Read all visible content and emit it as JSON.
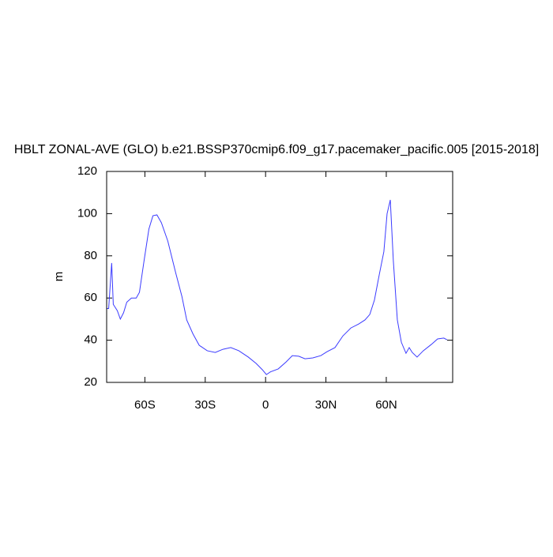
{
  "chart_data": {
    "type": "line",
    "title": "HBLT ZONAL-AVE (GLO) b.e21.BSSP370cmip6.f09_g17.pacemaker_pacific.005 [2015-2018]",
    "y_label": "m",
    "xlim": [
      -79,
      93
    ],
    "xticks": [
      {
        "value": -60,
        "label": "60S"
      },
      {
        "value": -30,
        "label": "30S"
      },
      0,
      {
        "value": 30,
        "label": "30N"
      },
      {
        "value": 60,
        "label": "60N"
      }
    ],
    "ylim": [
      20,
      120
    ],
    "yticks": [
      20,
      40,
      60,
      80,
      100,
      120
    ],
    "grid": false,
    "series": [
      {
        "color": "#3b3bff",
        "x": [
          -78.8,
          -78,
          -76.5,
          -75.7,
          -73.7,
          -72.2,
          -70.6,
          -69,
          -66.7,
          -64.3,
          -62.7,
          -60.4,
          -58,
          -56,
          -54,
          -51.8,
          -48.6,
          -44.7,
          -41.6,
          -39.2,
          -36.1,
          -33,
          -29,
          -25,
          -21.2,
          -17.3,
          -13.3,
          -8.6,
          -4.7,
          -1.6,
          0.4,
          2.4,
          6.3,
          10.2,
          13.3,
          16.5,
          19.6,
          23.5,
          27.5,
          30.6,
          34.5,
          38.4,
          42.4,
          46.3,
          49.4,
          51.8,
          54.1,
          56.5,
          58.8,
          60.4,
          62,
          63.5,
          65.5,
          67.5,
          69.8,
          71.4,
          72.9,
          75.3,
          78.4,
          82.4,
          85.5,
          88.6,
          90.2
        ],
        "values": [
          55,
          55,
          76.6,
          57,
          54,
          50,
          53,
          58,
          60,
          60,
          62.7,
          77.7,
          92.7,
          99,
          99.4,
          95.7,
          87,
          72,
          60.8,
          49.6,
          43,
          37.6,
          35,
          34.2,
          35.7,
          36.5,
          35,
          32,
          29,
          26,
          23.7,
          25,
          26.4,
          29.7,
          32.7,
          32.4,
          31.2,
          31.6,
          32.7,
          34.6,
          36.5,
          42,
          45.8,
          47.7,
          49.6,
          52.2,
          59,
          71,
          82,
          100,
          106.5,
          77.7,
          49.6,
          39,
          33.8,
          36.5,
          34.2,
          32,
          35,
          38,
          40.6,
          41,
          40.2
        ]
      }
    ]
  }
}
